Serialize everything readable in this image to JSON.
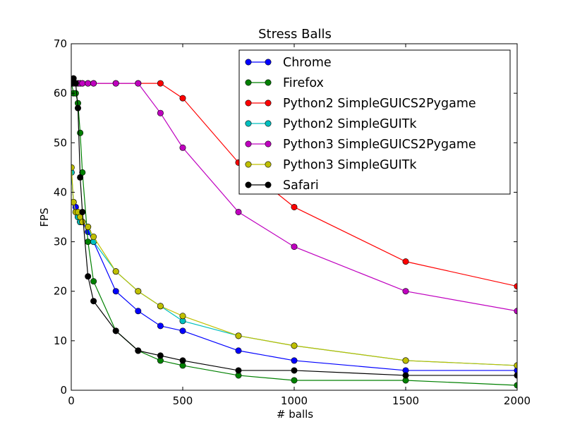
{
  "chart_data": {
    "type": "line",
    "title": "Stress Balls",
    "xlabel": "# balls",
    "ylabel": "FPS",
    "xlim": [
      0,
      2000
    ],
    "ylim": [
      0,
      70
    ],
    "xticks": [
      0,
      500,
      1000,
      1500,
      2000
    ],
    "yticks": [
      0,
      10,
      20,
      30,
      40,
      50,
      60,
      70
    ],
    "grid": false,
    "legend_position": "top-right",
    "series": [
      {
        "name": "Chrome",
        "color": "#0000ff",
        "x": [
          1,
          10,
          20,
          30,
          40,
          50,
          75,
          100,
          200,
          300,
          400,
          500,
          750,
          1000,
          1500,
          2000
        ],
        "y": [
          44,
          38,
          37,
          35,
          34,
          34,
          32,
          30,
          20,
          16,
          13,
          12,
          8,
          6,
          4,
          4
        ]
      },
      {
        "name": "Firefox",
        "color": "#008000",
        "x": [
          1,
          10,
          20,
          30,
          40,
          50,
          75,
          100,
          200,
          300,
          400,
          500,
          750,
          1000,
          1500,
          2000
        ],
        "y": [
          62,
          60,
          60,
          58,
          52,
          44,
          30,
          22,
          12,
          8,
          6,
          5,
          3,
          2,
          2,
          1
        ]
      },
      {
        "name": "Python2 SimpleGUICS2Pygame",
        "color": "#ff0000",
        "x": [
          1,
          10,
          20,
          30,
          40,
          50,
          75,
          100,
          200,
          300,
          400,
          500,
          750,
          1000,
          1500,
          2000
        ],
        "y": [
          62,
          62,
          62,
          62,
          62,
          62,
          62,
          62,
          62,
          62,
          62,
          59,
          46,
          37,
          26,
          21
        ]
      },
      {
        "name": "Python2 SimpleGUITk",
        "color": "#00bfbf",
        "x": [
          1,
          10,
          20,
          30,
          40,
          50,
          75,
          100,
          200,
          300,
          400,
          500,
          750,
          1000,
          1500,
          2000
        ],
        "y": [
          44,
          38,
          36,
          35,
          34,
          34,
          33,
          30,
          24,
          20,
          17,
          14,
          11,
          9,
          6,
          5
        ]
      },
      {
        "name": "Python3 SimpleGUICS2Pygame",
        "color": "#bf00bf",
        "x": [
          1,
          10,
          20,
          30,
          40,
          50,
          75,
          100,
          200,
          300,
          400,
          500,
          750,
          1000,
          1500,
          2000
        ],
        "y": [
          62,
          62,
          62,
          62,
          62,
          62,
          62,
          62,
          62,
          62,
          56,
          49,
          36,
          29,
          20,
          16
        ]
      },
      {
        "name": "Python3 SimpleGUITk",
        "color": "#bfbf00",
        "x": [
          1,
          10,
          20,
          30,
          40,
          50,
          75,
          100,
          200,
          300,
          400,
          500,
          750,
          1000,
          1500,
          2000
        ],
        "y": [
          45,
          38,
          36,
          36,
          35,
          34,
          33,
          31,
          24,
          20,
          17,
          15,
          11,
          9,
          6,
          5
        ]
      },
      {
        "name": "Safari",
        "color": "#000000",
        "x": [
          1,
          10,
          20,
          30,
          40,
          50,
          75,
          100,
          200,
          300,
          400,
          500,
          750,
          1000,
          1500,
          2000
        ],
        "y": [
          62,
          63,
          62,
          57,
          43,
          36,
          23,
          18,
          12,
          8,
          7,
          6,
          4,
          4,
          3,
          3
        ]
      }
    ]
  }
}
